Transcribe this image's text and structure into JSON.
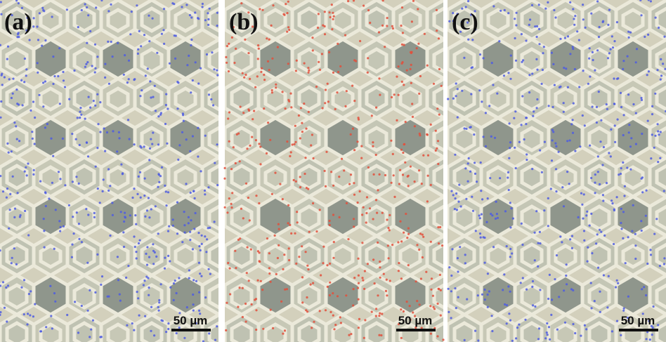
{
  "panels": [
    {
      "label": "(a)",
      "scale_bar": "50 µm"
    },
    {
      "label": "(b)",
      "scale_bar": "50 µm"
    },
    {
      "label": "(c)",
      "scale_bar": "50 µm"
    }
  ]
}
